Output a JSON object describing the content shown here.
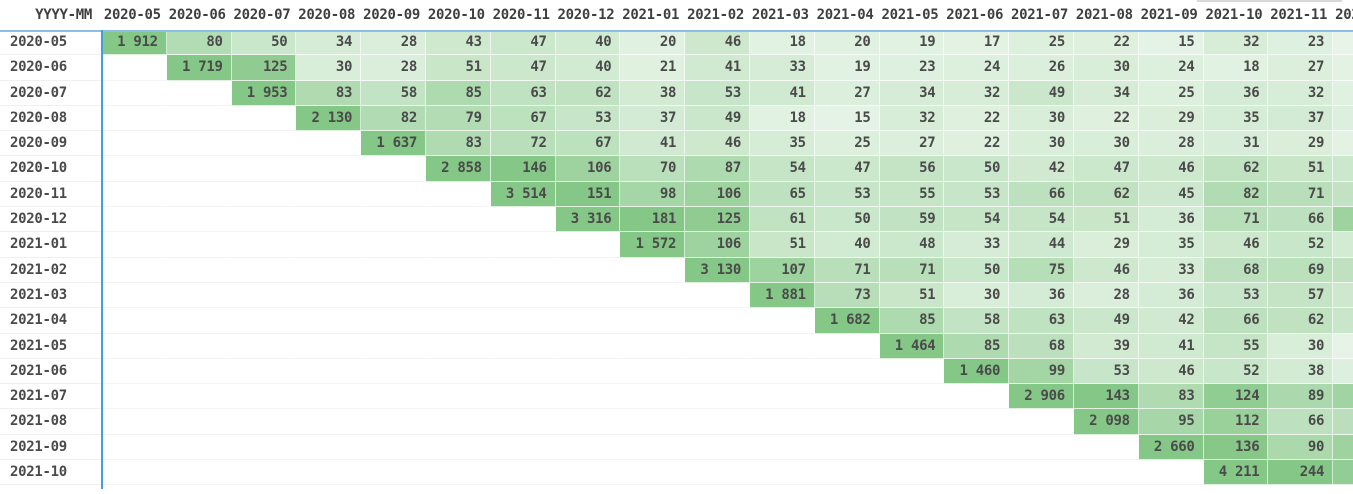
{
  "chart_data": {
    "type": "heatmap",
    "corner_label": "YYYY-MM",
    "columns": [
      "2020-05",
      "2020-06",
      "2020-07",
      "2020-08",
      "2020-09",
      "2020-10",
      "2020-11",
      "2020-12",
      "2021-01",
      "2021-02",
      "2021-03",
      "2021-04",
      "2021-05",
      "2021-06",
      "2021-07",
      "2021-08",
      "2021-09",
      "2021-10",
      "2021-11"
    ],
    "partial_column_label": "202",
    "layout_hints": {
      "description": "Cohort triangle table: each row starts at its own diagonal month column; cells right of 2021-11 are clipped at the image edge",
      "value_format": "space-thousands",
      "grid": "off",
      "row_axis_line_color": "#41a0dc",
      "header_rule_color": "#8dbde9",
      "text_color": "#4a4a4a"
    },
    "color_scale": {
      "min_color": "#f0f8f0",
      "max_color": "#84c786",
      "cap_value": 140
    },
    "rows": [
      {
        "label": "2020-05",
        "values": [
          1912,
          80,
          50,
          34,
          28,
          43,
          47,
          40,
          20,
          46,
          18,
          20,
          19,
          17,
          25,
          22,
          15,
          32,
          23
        ],
        "partial_cell_color": "#e8f4e8"
      },
      {
        "label": "2020-06",
        "values": [
          1719,
          125,
          30,
          28,
          51,
          47,
          40,
          21,
          41,
          33,
          19,
          23,
          24,
          26,
          30,
          24,
          18,
          27
        ],
        "partial_cell_color": "#e4f2e4"
      },
      {
        "label": "2020-07",
        "values": [
          1953,
          83,
          58,
          85,
          63,
          62,
          38,
          53,
          41,
          27,
          34,
          32,
          49,
          34,
          25,
          36,
          32
        ],
        "partial_cell_color": "#e0f0e1"
      },
      {
        "label": "2020-08",
        "values": [
          2130,
          82,
          79,
          67,
          53,
          37,
          49,
          18,
          15,
          32,
          22,
          30,
          22,
          29,
          35,
          37
        ],
        "partial_cell_color": "#ddefde"
      },
      {
        "label": "2020-09",
        "values": [
          1637,
          83,
          72,
          67,
          41,
          46,
          35,
          25,
          27,
          22,
          30,
          30,
          28,
          31,
          29
        ],
        "partial_cell_color": "#e4f2e4"
      },
      {
        "label": "2020-10",
        "values": [
          2858,
          146,
          106,
          70,
          87,
          54,
          47,
          56,
          50,
          42,
          47,
          46,
          62,
          51
        ],
        "partial_cell_color": "#cbe7cc"
      },
      {
        "label": "2020-11",
        "values": [
          3514,
          151,
          98,
          106,
          65,
          53,
          55,
          53,
          66,
          62,
          45,
          82,
          71
        ],
        "partial_cell_color": "#c2e2c3"
      },
      {
        "label": "2020-12",
        "values": [
          3316,
          181,
          125,
          61,
          50,
          59,
          54,
          54,
          51,
          36,
          71,
          66
        ],
        "partial_cell_color": "#9ed3a0"
      },
      {
        "label": "2021-01",
        "values": [
          1572,
          106,
          51,
          40,
          48,
          33,
          44,
          29,
          35,
          46,
          52
        ],
        "partial_cell_color": "#d2ebd3"
      },
      {
        "label": "2021-02",
        "values": [
          3130,
          107,
          71,
          71,
          50,
          75,
          46,
          33,
          68,
          69
        ],
        "partial_cell_color": "#bfe1c0"
      },
      {
        "label": "2021-03",
        "values": [
          1881,
          73,
          51,
          30,
          36,
          28,
          36,
          53,
          57
        ],
        "partial_cell_color": "#cde8ce"
      },
      {
        "label": "2021-04",
        "values": [
          1682,
          85,
          58,
          63,
          49,
          42,
          66,
          62
        ],
        "partial_cell_color": "#c9e6ca"
      },
      {
        "label": "2021-05",
        "values": [
          1464,
          85,
          68,
          39,
          41,
          55,
          30
        ],
        "partial_cell_color": "#e6f3e6"
      },
      {
        "label": "2021-06",
        "values": [
          1460,
          99,
          53,
          46,
          52,
          38
        ],
        "partial_cell_color": "#ddefde"
      },
      {
        "label": "2021-07",
        "values": [
          2906,
          143,
          83,
          124,
          89
        ],
        "partial_cell_color": "#a0d4a2"
      },
      {
        "label": "2021-08",
        "values": [
          2098,
          95,
          112,
          66
        ],
        "partial_cell_color": "#bbdfbc"
      },
      {
        "label": "2021-09",
        "values": [
          2660,
          136,
          90
        ],
        "partial_cell_color": "#9ed3a0"
      },
      {
        "label": "2021-10",
        "values": [
          4211,
          244
        ],
        "partial_cell_color": "#93cd96"
      }
    ]
  }
}
